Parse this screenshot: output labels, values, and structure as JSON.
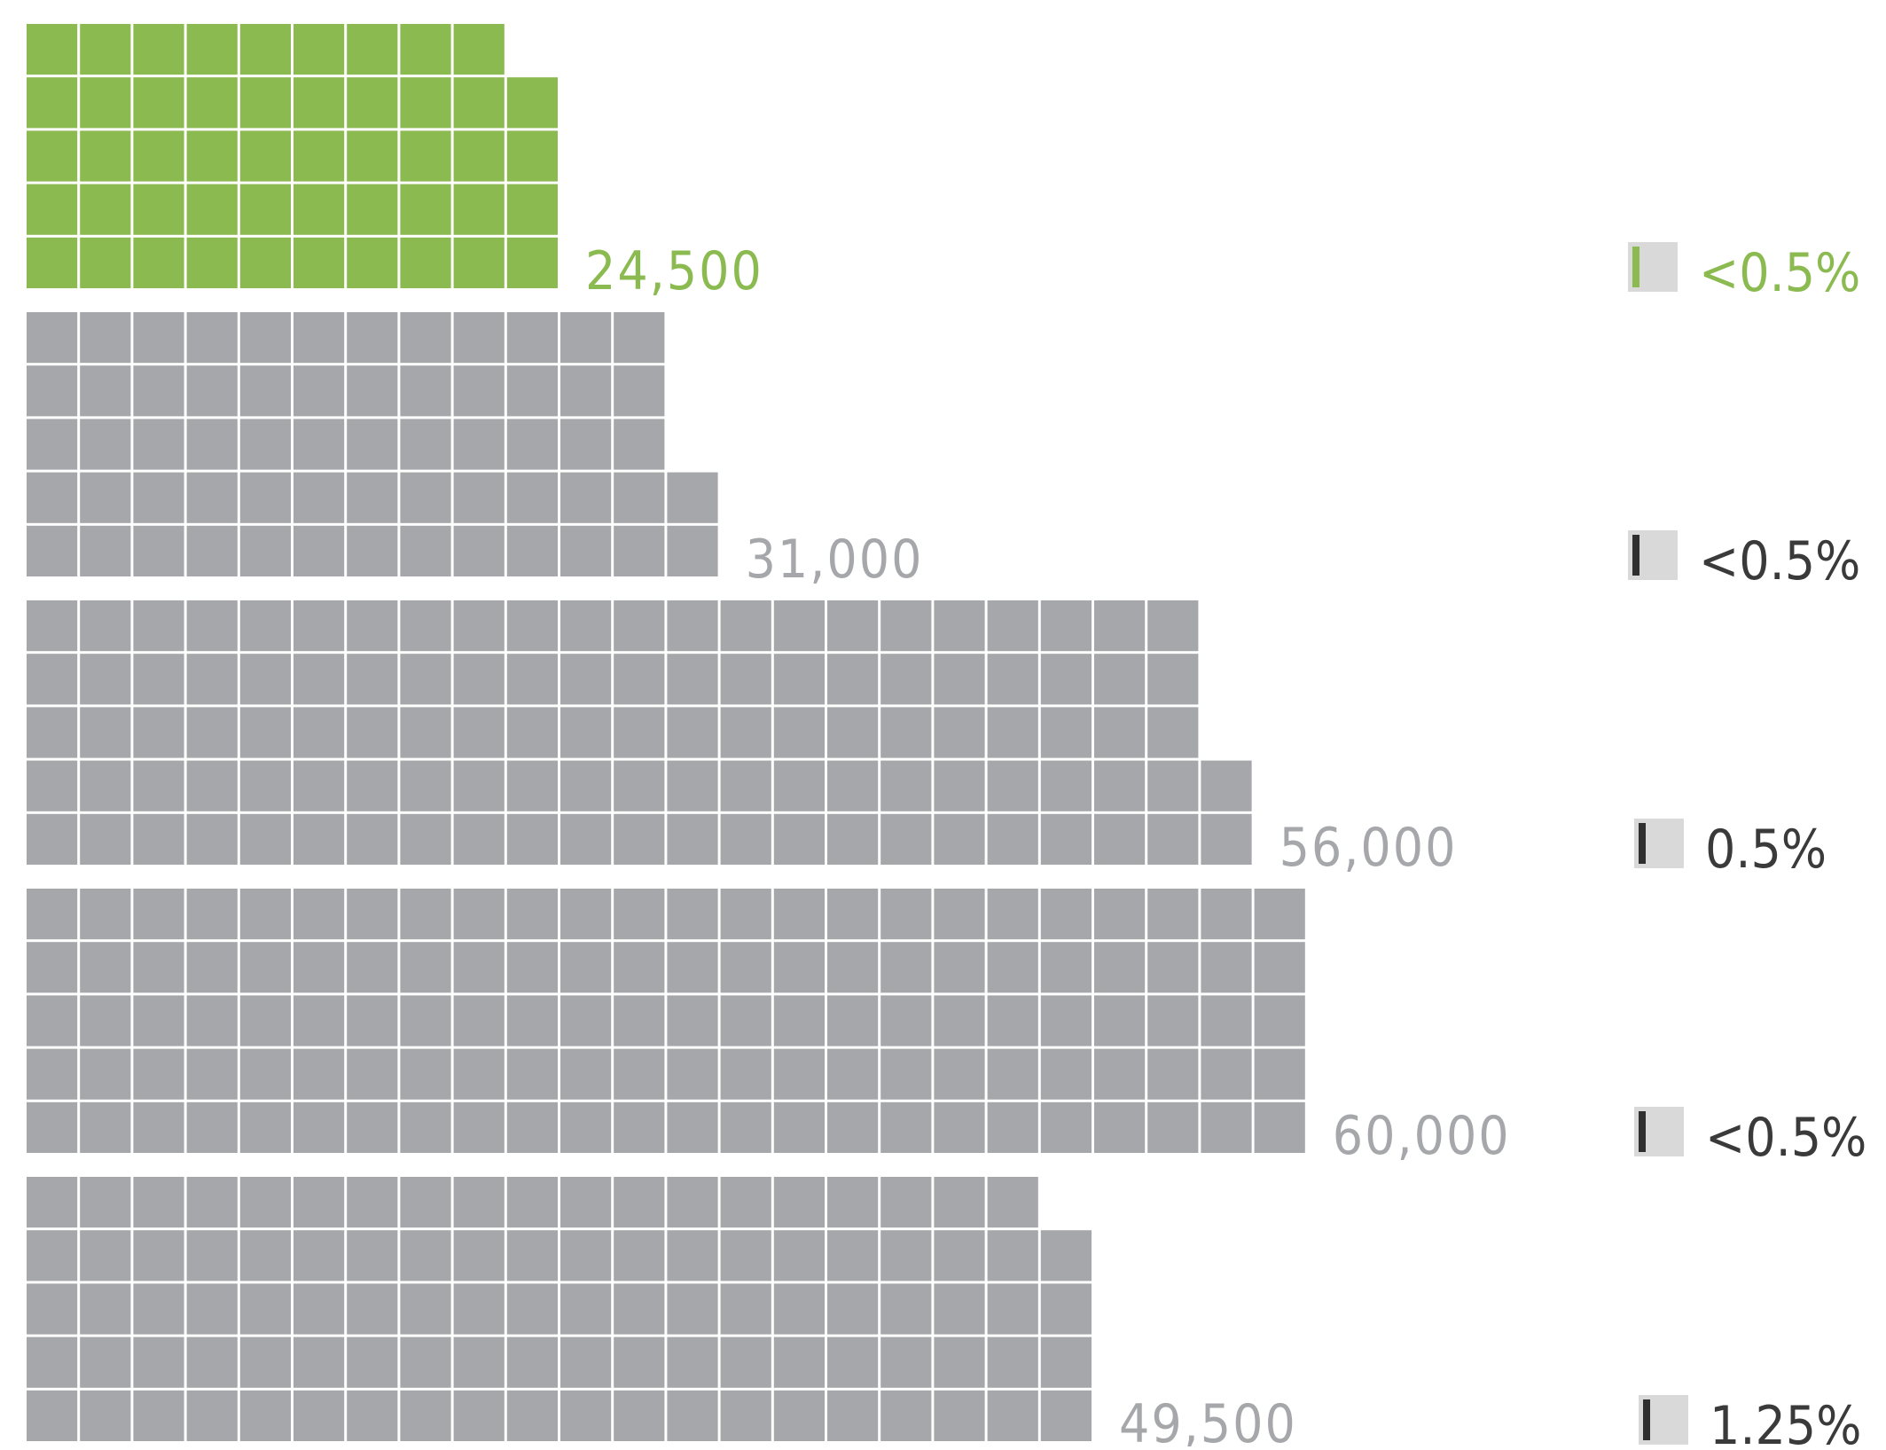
{
  "colors": {
    "highlight": "#8bbb50",
    "cell_default": "#a6a7aa",
    "count_label_default": "#a6a7aa",
    "percent_label_default": "#3a3a3a",
    "percent_track": "#d9d9d9",
    "percent_marker_default": "#2f2f2f",
    "background": "#ffffff"
  },
  "chart_data": {
    "type": "waffle",
    "rows_per_group": 5,
    "highlight_index": 0,
    "items": [
      {
        "count": 24500,
        "count_label": "24,500",
        "percent_label": "<0.5%"
      },
      {
        "count": 31000,
        "count_label": "31,000",
        "percent_label": "<0.5%"
      },
      {
        "count": 56000,
        "count_label": "56,000",
        "percent_label": "0.5%"
      },
      {
        "count": 60000,
        "count_label": "60,000",
        "percent_label": "<0.5%"
      },
      {
        "count": 49500,
        "count_label": "49,500",
        "percent_label": "1.25%"
      }
    ]
  }
}
